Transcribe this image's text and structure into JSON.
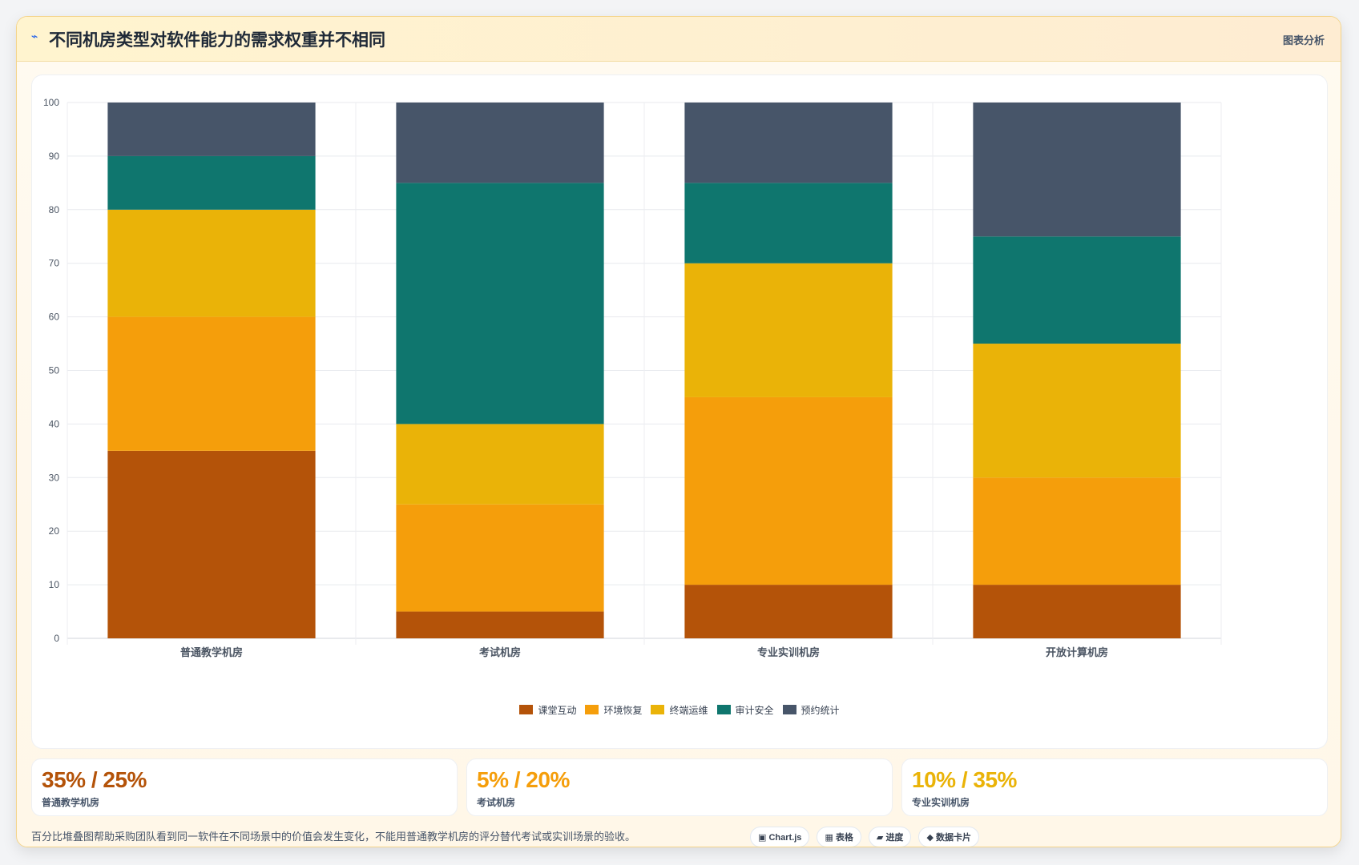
{
  "header": {
    "icon": "pulse-icon",
    "title": "不同机房类型对软件能力的需求权重并不相同",
    "action_label": "图表分析"
  },
  "chart_data": {
    "type": "bar",
    "stacked": true,
    "categories": [
      "普通教学机房",
      "考试机房",
      "专业实训机房",
      "开放计算机房"
    ],
    "series": [
      {
        "name": "课堂互动",
        "color": "#b45309",
        "values": [
          35,
          5,
          10,
          10
        ]
      },
      {
        "name": "环境恢复",
        "color": "#f59e0b",
        "values": [
          25,
          20,
          35,
          20
        ]
      },
      {
        "name": "终端运维",
        "color": "#eab308",
        "values": [
          20,
          15,
          25,
          25
        ]
      },
      {
        "name": "审计安全",
        "color": "#0f766e",
        "values": [
          10,
          45,
          15,
          20
        ]
      },
      {
        "name": "预约统计",
        "color": "#475569",
        "values": [
          10,
          15,
          15,
          25
        ]
      }
    ],
    "ylim": [
      0,
      100
    ],
    "yticks": [
      0,
      10,
      20,
      30,
      40,
      50,
      60,
      70,
      80,
      90,
      100
    ],
    "grid": true,
    "legend": "bottom-center"
  },
  "stats": [
    {
      "value": "35% / 25%",
      "label": "普通教学机房",
      "color": "#b45309"
    },
    {
      "value": "5% / 20%",
      "label": "考试机房",
      "color": "#f59e0b"
    },
    {
      "value": "10% / 35%",
      "label": "专业实训机房",
      "color": "#eab308"
    }
  ],
  "note": "百分比堆叠图帮助采购团队看到同一软件在不同场景中的价值会发生变化，不能用普通教学机房的评分替代考试或实训场景的验收。",
  "chips": [
    {
      "icon": "▣",
      "label": "Chart.js"
    },
    {
      "icon": "▦",
      "label": "表格"
    },
    {
      "icon": "▰",
      "label": "进度"
    },
    {
      "icon": "◆",
      "label": "数据卡片"
    }
  ]
}
